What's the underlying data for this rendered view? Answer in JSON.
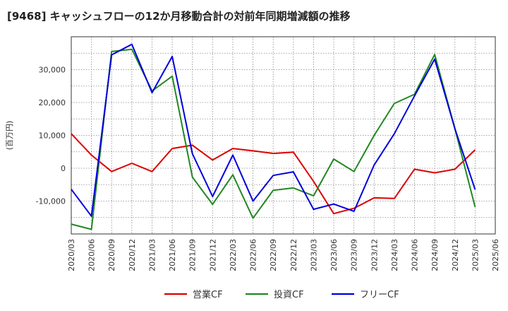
{
  "chart_data": {
    "type": "line",
    "title": "[9468]  キャッシュフローの12か月移動合計の対前年同期増減額の推移",
    "ylabel": "(百万円)",
    "xlabel": "",
    "ylim": [
      -20000,
      40000
    ],
    "yticks": [
      -10000,
      0,
      10000,
      20000,
      30000
    ],
    "ytick_labels": [
      "-10,000",
      "0",
      "10,000",
      "20,000",
      "30,000"
    ],
    "grid": true,
    "legend_position": "bottom",
    "x": [
      "2020/03",
      "2020/06",
      "2020/09",
      "2020/12",
      "2021/03",
      "2021/06",
      "2021/09",
      "2021/12",
      "2022/03",
      "2022/06",
      "2022/09",
      "2022/12",
      "2023/03",
      "2023/06",
      "2023/09",
      "2023/12",
      "2024/03",
      "2024/06",
      "2024/09",
      "2024/12",
      "2025/03",
      "2025/06"
    ],
    "series": [
      {
        "name": "営業CF",
        "color": "#dd0000",
        "values": [
          10500,
          4000,
          -1000,
          1500,
          -1000,
          6000,
          7000,
          2500,
          6000,
          5300,
          4500,
          4900,
          -4000,
          -13800,
          -12200,
          -9000,
          -9200,
          -300,
          -1400,
          -300,
          5600,
          null
        ]
      },
      {
        "name": "投資CF",
        "color": "#228822",
        "values": [
          -17000,
          -18600,
          35500,
          36200,
          23500,
          28000,
          -2700,
          -11000,
          -2000,
          -15200,
          -6700,
          -6000,
          -8400,
          2800,
          -1000,
          10000,
          19700,
          22500,
          34600,
          12000,
          -11800,
          null
        ]
      },
      {
        "name": "フリーCF",
        "color": "#0000dd",
        "values": [
          -6400,
          -14600,
          34500,
          37700,
          23000,
          34000,
          4400,
          -8600,
          4000,
          -10000,
          -2200,
          -1100,
          -12500,
          -10900,
          -13100,
          1000,
          10500,
          22000,
          33200,
          12000,
          -6500,
          null
        ]
      }
    ]
  }
}
